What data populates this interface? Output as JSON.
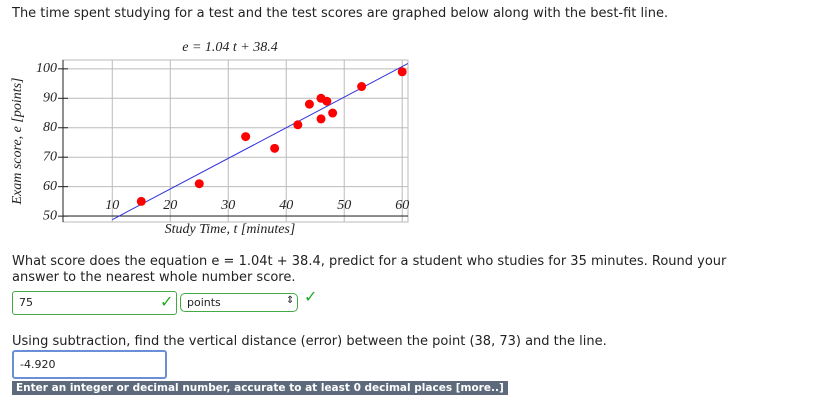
{
  "header": "The time spent studying for a test and the test scores are graphed below along with the best-fit line.",
  "chart_data": {
    "type": "scatter",
    "title": "e = 1.04 t + 38.4",
    "x_label": "Study Time, t [minutes]",
    "y_label": "Exam score, e [points]",
    "xlim": [
      1.5,
      61
    ],
    "ylim": [
      48,
      103
    ],
    "xticks": [
      10,
      20,
      30,
      40,
      50,
      60
    ],
    "yticks": [
      50,
      60,
      70,
      80,
      90,
      100
    ],
    "grid": true,
    "points": {
      "color": "#ff0000",
      "x": [
        15,
        25,
        33,
        38,
        42,
        44,
        46,
        47,
        46,
        48,
        53,
        60
      ],
      "values": [
        55,
        61,
        77,
        73,
        81,
        88,
        90,
        89,
        83,
        85,
        94,
        99
      ]
    },
    "fit_line": {
      "color": "#3333dd",
      "x": [
        10,
        61
      ],
      "values": [
        48.8,
        101.84
      ]
    }
  },
  "question1": "What score does the equation e = 1.04t + 38.4, predict for a student who studies for 35 minutes. Round your answer to the nearest whole number score.",
  "answer1": "75",
  "unit1": "points",
  "question2": "Using subtraction, find the vertical distance (error) between the point (38, 73) and the line.",
  "answer2": "-4.920",
  "hint": "Enter an integer or decimal number, accurate to at least 0 decimal places [more..]"
}
